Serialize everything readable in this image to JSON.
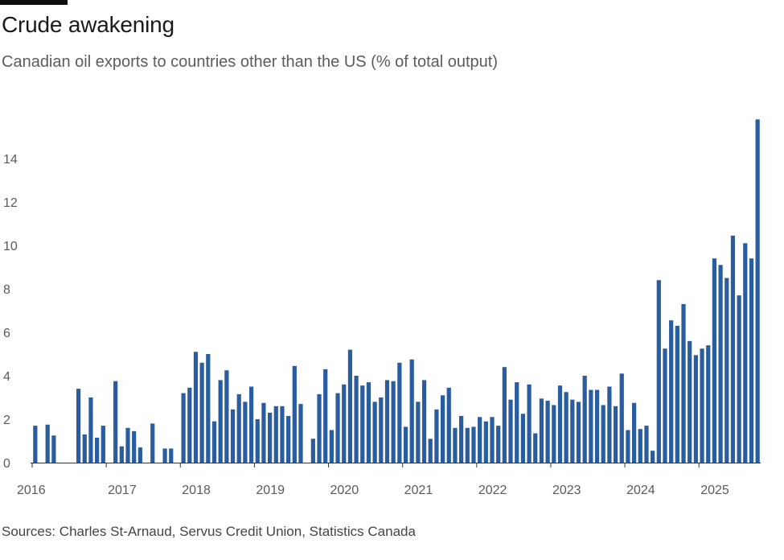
{
  "header": {
    "title": "Crude awakening",
    "subtitle": "Canadian oil exports to countries other than the US (% of total output)"
  },
  "footer": {
    "source": "Sources: Charles St-Arnaud, Servus Credit Union, Statistics Canada"
  },
  "colors": {
    "bar": "#2a5d9f",
    "axis": "#333333",
    "top_rule": "#0d0d0d"
  },
  "chart_data": {
    "type": "bar",
    "title": "Crude awakening",
    "subtitle": "Canadian oil exports to countries other than the US (% of total output)",
    "xlabel": "",
    "ylabel": "% of total output",
    "x_start": "2016-01",
    "frequency": "monthly",
    "x_ticks": [
      "2016",
      "2017",
      "2018",
      "2019",
      "2020",
      "2021",
      "2022",
      "2023",
      "2024",
      "2025"
    ],
    "y_ticks": [
      0,
      2,
      4,
      6,
      8,
      10,
      12,
      14
    ],
    "ylim": [
      0,
      16
    ],
    "grid": false,
    "values": [
      1.7,
      null,
      1.75,
      1.25,
      null,
      null,
      null,
      3.4,
      1.3,
      3.0,
      1.15,
      1.7,
      null,
      3.75,
      0.75,
      1.6,
      1.45,
      0.7,
      null,
      1.8,
      null,
      0.65,
      0.65,
      null,
      3.2,
      3.45,
      5.1,
      4.6,
      5.0,
      1.9,
      3.8,
      4.25,
      2.45,
      3.15,
      2.8,
      3.5,
      2.0,
      2.75,
      2.3,
      2.6,
      2.6,
      2.15,
      4.45,
      2.7,
      null,
      1.1,
      3.15,
      4.3,
      1.5,
      3.2,
      3.6,
      5.2,
      4.0,
      3.55,
      3.7,
      2.8,
      3.0,
      3.8,
      3.75,
      4.6,
      1.65,
      4.75,
      2.8,
      3.8,
      1.1,
      2.45,
      3.1,
      3.45,
      1.6,
      2.15,
      1.6,
      1.65,
      2.1,
      1.9,
      2.1,
      1.7,
      4.4,
      2.9,
      3.7,
      2.25,
      3.6,
      1.35,
      2.95,
      2.85,
      2.65,
      3.55,
      3.25,
      2.9,
      2.8,
      4.0,
      3.35,
      3.35,
      2.65,
      3.5,
      2.6,
      4.1,
      1.5,
      2.75,
      1.55,
      1.7,
      0.55,
      8.4,
      5.25,
      6.55,
      6.3,
      7.3,
      5.6,
      4.95,
      5.25,
      5.4,
      9.4,
      9.1,
      8.5,
      10.45,
      7.7,
      10.1,
      9.4,
      15.8
    ]
  }
}
